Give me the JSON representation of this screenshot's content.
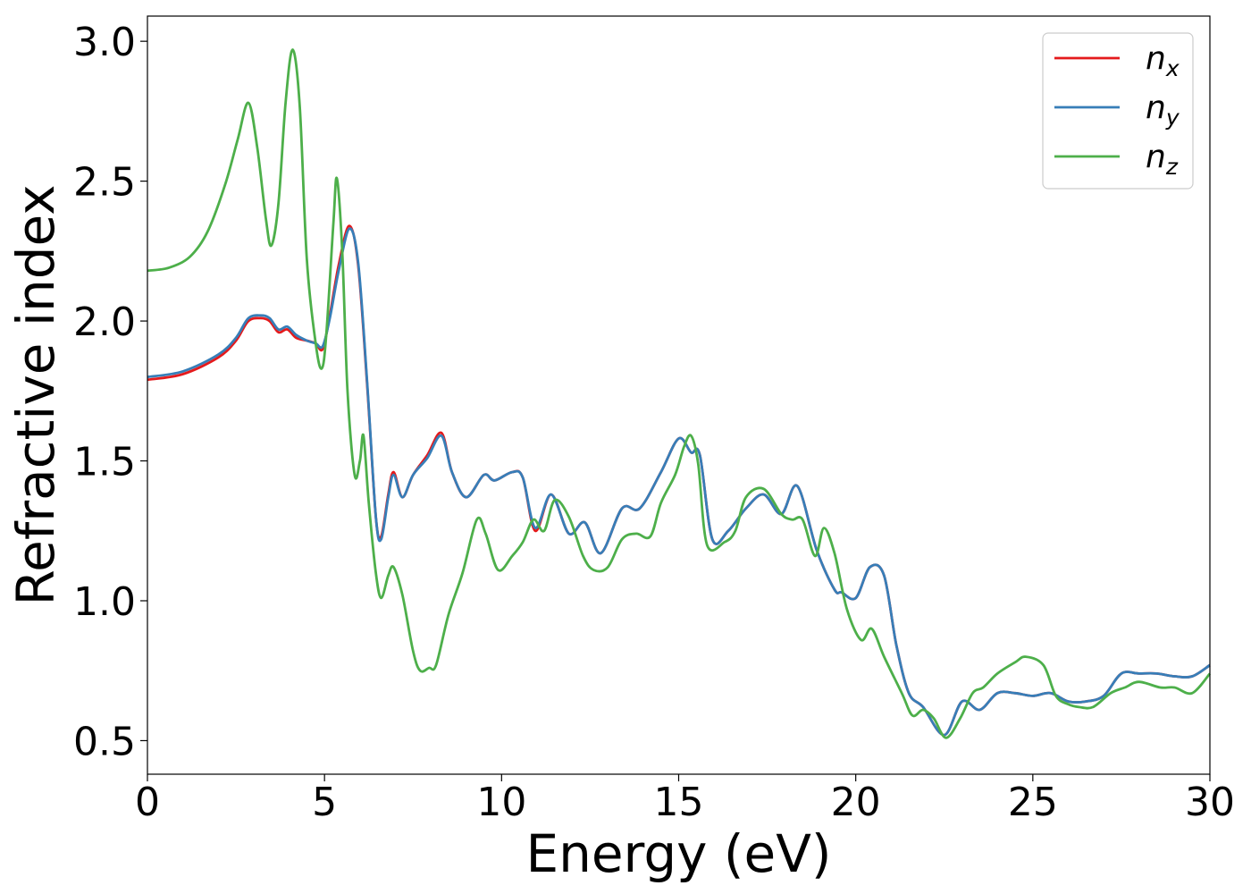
{
  "chart_data": {
    "type": "line",
    "title": "",
    "xlabel": "Energy (eV)",
    "ylabel": "Refractive index",
    "xlim": [
      0,
      30
    ],
    "ylim": [
      0.38,
      3.09
    ],
    "xticks": [
      0,
      5,
      10,
      15,
      20,
      25,
      30
    ],
    "xtick_labels": [
      "0",
      "5",
      "10",
      "15",
      "20",
      "25",
      "30"
    ],
    "yticks": [
      0.5,
      1.0,
      1.5,
      2.0,
      2.5,
      3.0
    ],
    "ytick_labels": [
      "0.5",
      "1.0",
      "1.5",
      "2.0",
      "2.5",
      "3.0"
    ],
    "grid": false,
    "legend_position": "top-right",
    "series": [
      {
        "name": "n_x",
        "legend_base": "n",
        "legend_sub": "x",
        "color": "#e41a1c",
        "points": [
          [
            0,
            1.79
          ],
          [
            1,
            1.81
          ],
          [
            2,
            1.87
          ],
          [
            2.5,
            1.93
          ],
          [
            2.85,
            2.0
          ],
          [
            3.2,
            2.01
          ],
          [
            3.45,
            2.0
          ],
          [
            3.7,
            1.96
          ],
          [
            3.95,
            1.97
          ],
          [
            4.2,
            1.94
          ],
          [
            4.5,
            1.93
          ],
          [
            4.75,
            1.92
          ],
          [
            4.95,
            1.9
          ],
          [
            5.15,
            2.02
          ],
          [
            5.4,
            2.2
          ],
          [
            5.7,
            2.34
          ],
          [
            5.95,
            2.2
          ],
          [
            6.2,
            1.78
          ],
          [
            6.45,
            1.3
          ],
          [
            6.6,
            1.23
          ],
          [
            6.8,
            1.38
          ],
          [
            6.95,
            1.46
          ],
          [
            7.2,
            1.37
          ],
          [
            7.5,
            1.45
          ],
          [
            7.9,
            1.52
          ],
          [
            8.3,
            1.6
          ],
          [
            8.6,
            1.46
          ],
          [
            9.0,
            1.37
          ],
          [
            9.5,
            1.45
          ],
          [
            9.8,
            1.43
          ],
          [
            10.3,
            1.46
          ],
          [
            10.6,
            1.44
          ],
          [
            10.95,
            1.25
          ],
          [
            11.4,
            1.38
          ],
          [
            11.9,
            1.24
          ],
          [
            12.35,
            1.28
          ],
          [
            12.8,
            1.17
          ],
          [
            13.4,
            1.33
          ],
          [
            13.9,
            1.33
          ],
          [
            14.5,
            1.46
          ],
          [
            15.0,
            1.58
          ],
          [
            15.35,
            1.53
          ],
          [
            15.6,
            1.52
          ],
          [
            15.95,
            1.22
          ],
          [
            16.4,
            1.25
          ],
          [
            16.9,
            1.33
          ],
          [
            17.4,
            1.38
          ],
          [
            17.9,
            1.31
          ],
          [
            18.35,
            1.41
          ],
          [
            18.9,
            1.18
          ],
          [
            19.4,
            1.04
          ],
          [
            19.6,
            1.03
          ],
          [
            20.0,
            1.01
          ],
          [
            20.4,
            1.12
          ],
          [
            20.8,
            1.09
          ],
          [
            21.15,
            0.84
          ],
          [
            21.5,
            0.67
          ],
          [
            21.9,
            0.62
          ],
          [
            22.5,
            0.52
          ],
          [
            23.0,
            0.64
          ],
          [
            23.5,
            0.61
          ],
          [
            24.0,
            0.67
          ],
          [
            24.5,
            0.67
          ],
          [
            25.0,
            0.66
          ],
          [
            25.5,
            0.67
          ],
          [
            26.0,
            0.64
          ],
          [
            26.5,
            0.64
          ],
          [
            27.0,
            0.66
          ],
          [
            27.5,
            0.74
          ],
          [
            28.0,
            0.74
          ],
          [
            28.5,
            0.74
          ],
          [
            29.0,
            0.73
          ],
          [
            29.5,
            0.73
          ],
          [
            30.0,
            0.77
          ]
        ]
      },
      {
        "name": "n_y",
        "legend_base": "n",
        "legend_sub": "y",
        "color": "#377eb8",
        "points": [
          [
            0,
            1.8
          ],
          [
            1,
            1.82
          ],
          [
            2,
            1.88
          ],
          [
            2.5,
            1.94
          ],
          [
            2.85,
            2.01
          ],
          [
            3.2,
            2.02
          ],
          [
            3.45,
            2.01
          ],
          [
            3.7,
            1.97
          ],
          [
            3.95,
            1.98
          ],
          [
            4.2,
            1.95
          ],
          [
            4.5,
            1.93
          ],
          [
            4.75,
            1.92
          ],
          [
            4.95,
            1.91
          ],
          [
            5.15,
            2.01
          ],
          [
            5.4,
            2.18
          ],
          [
            5.7,
            2.33
          ],
          [
            5.95,
            2.21
          ],
          [
            6.2,
            1.79
          ],
          [
            6.45,
            1.3
          ],
          [
            6.6,
            1.22
          ],
          [
            6.8,
            1.37
          ],
          [
            6.95,
            1.45
          ],
          [
            7.2,
            1.37
          ],
          [
            7.5,
            1.45
          ],
          [
            7.9,
            1.51
          ],
          [
            8.3,
            1.59
          ],
          [
            8.6,
            1.46
          ],
          [
            9.0,
            1.37
          ],
          [
            9.5,
            1.45
          ],
          [
            9.8,
            1.43
          ],
          [
            10.3,
            1.46
          ],
          [
            10.6,
            1.44
          ],
          [
            10.95,
            1.26
          ],
          [
            11.4,
            1.38
          ],
          [
            11.9,
            1.24
          ],
          [
            12.35,
            1.28
          ],
          [
            12.8,
            1.17
          ],
          [
            13.4,
            1.33
          ],
          [
            13.9,
            1.33
          ],
          [
            14.5,
            1.46
          ],
          [
            15.0,
            1.58
          ],
          [
            15.35,
            1.53
          ],
          [
            15.6,
            1.52
          ],
          [
            15.95,
            1.22
          ],
          [
            16.4,
            1.25
          ],
          [
            16.9,
            1.33
          ],
          [
            17.4,
            1.38
          ],
          [
            17.9,
            1.31
          ],
          [
            18.35,
            1.41
          ],
          [
            18.9,
            1.18
          ],
          [
            19.4,
            1.04
          ],
          [
            19.6,
            1.03
          ],
          [
            20.0,
            1.01
          ],
          [
            20.4,
            1.12
          ],
          [
            20.8,
            1.09
          ],
          [
            21.15,
            0.84
          ],
          [
            21.5,
            0.67
          ],
          [
            21.9,
            0.62
          ],
          [
            22.5,
            0.52
          ],
          [
            23.0,
            0.64
          ],
          [
            23.5,
            0.61
          ],
          [
            24.0,
            0.67
          ],
          [
            24.5,
            0.67
          ],
          [
            25.0,
            0.66
          ],
          [
            25.5,
            0.67
          ],
          [
            26.0,
            0.64
          ],
          [
            26.5,
            0.64
          ],
          [
            27.0,
            0.66
          ],
          [
            27.5,
            0.74
          ],
          [
            28.0,
            0.74
          ],
          [
            28.5,
            0.74
          ],
          [
            29.0,
            0.73
          ],
          [
            29.5,
            0.73
          ],
          [
            30.0,
            0.77
          ]
        ]
      },
      {
        "name": "n_z",
        "legend_base": "n",
        "legend_sub": "z",
        "color": "#4daf4a",
        "points": [
          [
            0,
            2.18
          ],
          [
            0.6,
            2.19
          ],
          [
            1.2,
            2.23
          ],
          [
            1.7,
            2.32
          ],
          [
            2.2,
            2.49
          ],
          [
            2.55,
            2.65
          ],
          [
            2.85,
            2.78
          ],
          [
            3.1,
            2.62
          ],
          [
            3.35,
            2.36
          ],
          [
            3.5,
            2.27
          ],
          [
            3.7,
            2.42
          ],
          [
            3.9,
            2.78
          ],
          [
            4.1,
            2.97
          ],
          [
            4.3,
            2.77
          ],
          [
            4.5,
            2.22
          ],
          [
            4.75,
            1.92
          ],
          [
            4.92,
            1.83
          ],
          [
            5.05,
            1.95
          ],
          [
            5.25,
            2.35
          ],
          [
            5.35,
            2.51
          ],
          [
            5.5,
            2.25
          ],
          [
            5.65,
            1.75
          ],
          [
            5.85,
            1.45
          ],
          [
            6.0,
            1.5
          ],
          [
            6.1,
            1.59
          ],
          [
            6.25,
            1.35
          ],
          [
            6.45,
            1.1
          ],
          [
            6.6,
            1.01
          ],
          [
            6.8,
            1.09
          ],
          [
            6.95,
            1.12
          ],
          [
            7.2,
            1.02
          ],
          [
            7.5,
            0.82
          ],
          [
            7.7,
            0.75
          ],
          [
            7.95,
            0.76
          ],
          [
            8.15,
            0.77
          ],
          [
            8.5,
            0.95
          ],
          [
            8.9,
            1.1
          ],
          [
            9.3,
            1.29
          ],
          [
            9.55,
            1.24
          ],
          [
            9.9,
            1.11
          ],
          [
            10.3,
            1.16
          ],
          [
            10.6,
            1.21
          ],
          [
            10.9,
            1.29
          ],
          [
            11.2,
            1.25
          ],
          [
            11.5,
            1.36
          ],
          [
            11.9,
            1.3
          ],
          [
            12.3,
            1.16
          ],
          [
            12.6,
            1.11
          ],
          [
            13.0,
            1.12
          ],
          [
            13.4,
            1.22
          ],
          [
            13.8,
            1.24
          ],
          [
            14.2,
            1.23
          ],
          [
            14.5,
            1.35
          ],
          [
            14.9,
            1.45
          ],
          [
            15.15,
            1.55
          ],
          [
            15.35,
            1.59
          ],
          [
            15.55,
            1.49
          ],
          [
            15.8,
            1.2
          ],
          [
            16.3,
            1.21
          ],
          [
            16.6,
            1.25
          ],
          [
            16.9,
            1.37
          ],
          [
            17.4,
            1.4
          ],
          [
            17.9,
            1.31
          ],
          [
            18.2,
            1.29
          ],
          [
            18.5,
            1.29
          ],
          [
            18.85,
            1.16
          ],
          [
            19.1,
            1.26
          ],
          [
            19.4,
            1.17
          ],
          [
            19.75,
            0.97
          ],
          [
            20.15,
            0.86
          ],
          [
            20.45,
            0.9
          ],
          [
            20.8,
            0.8
          ],
          [
            21.3,
            0.67
          ],
          [
            21.6,
            0.59
          ],
          [
            21.9,
            0.61
          ],
          [
            22.2,
            0.58
          ],
          [
            22.55,
            0.51
          ],
          [
            22.95,
            0.58
          ],
          [
            23.3,
            0.67
          ],
          [
            23.6,
            0.69
          ],
          [
            24.0,
            0.74
          ],
          [
            24.5,
            0.78
          ],
          [
            24.8,
            0.8
          ],
          [
            25.3,
            0.77
          ],
          [
            25.65,
            0.66
          ],
          [
            26.0,
            0.63
          ],
          [
            26.3,
            0.62
          ],
          [
            26.7,
            0.62
          ],
          [
            27.2,
            0.67
          ],
          [
            27.6,
            0.69
          ],
          [
            28.0,
            0.71
          ],
          [
            28.6,
            0.69
          ],
          [
            29.0,
            0.69
          ],
          [
            29.5,
            0.67
          ],
          [
            30.0,
            0.74
          ]
        ]
      }
    ]
  }
}
